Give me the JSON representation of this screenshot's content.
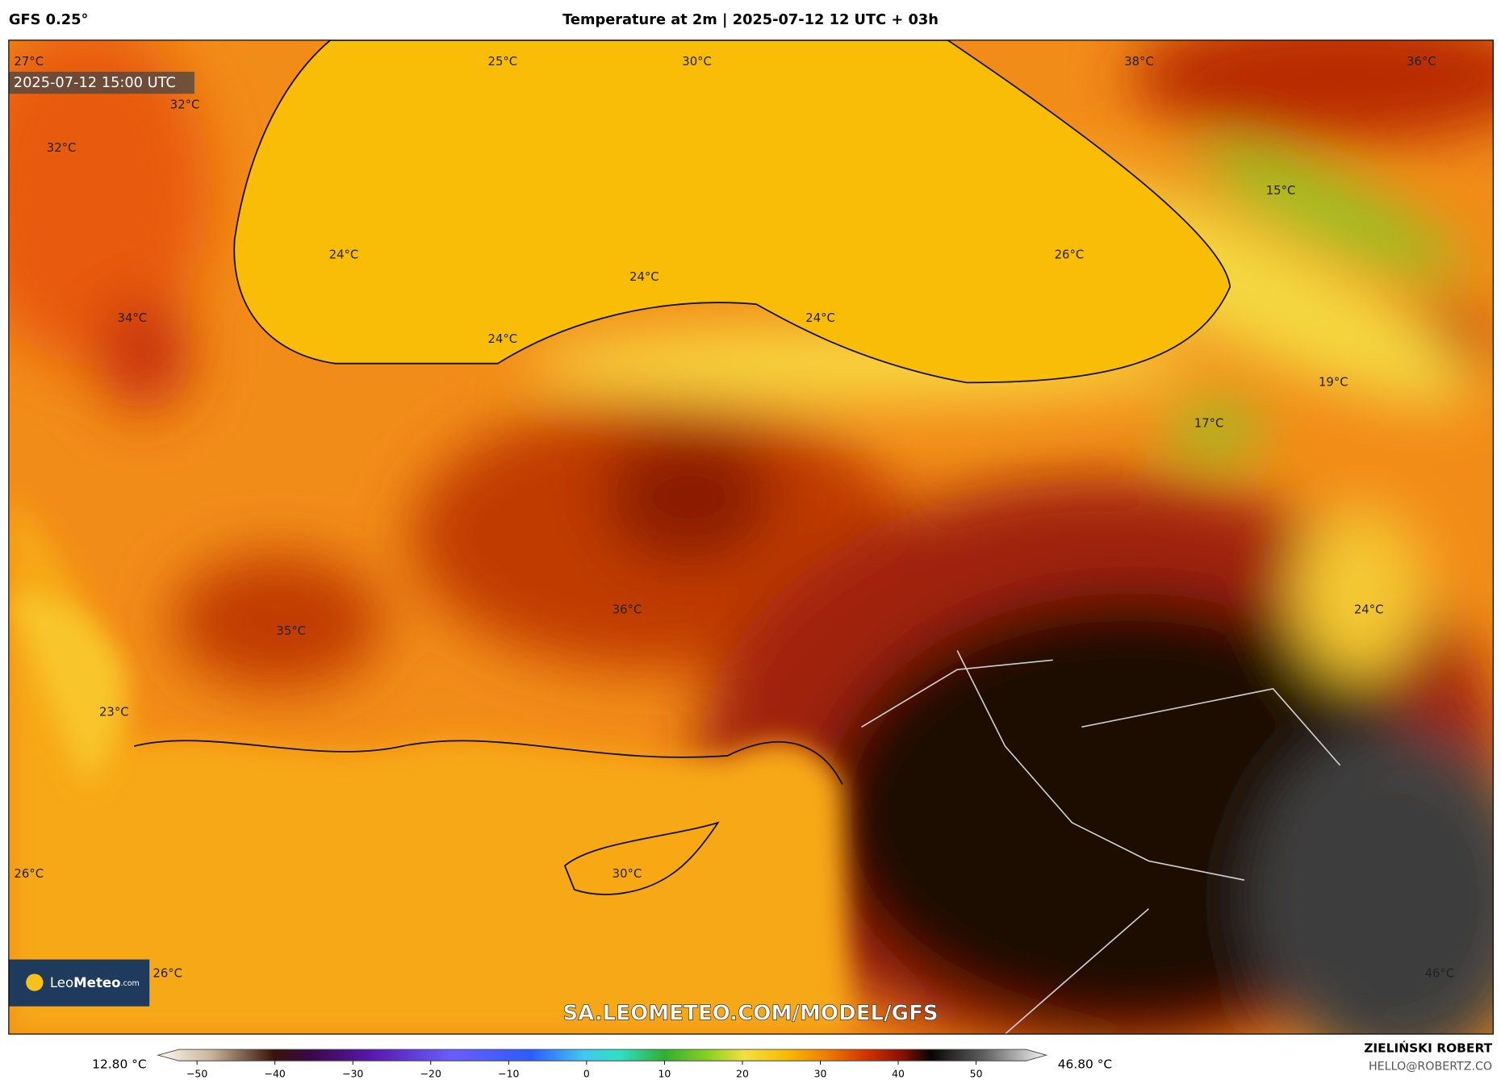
{
  "header": {
    "model": "GFS 0.25°",
    "title": "Temperature at 2m | 2025-07-12 12 UTC + 03h"
  },
  "map": {
    "valid_time": "2025-07-12 15:00 UTC",
    "labels": [
      "27°C",
      "25°C",
      "30°C",
      "38°C",
      "36°C",
      "32°C",
      "32°C",
      "15°C",
      "24°C",
      "26°C",
      "24°C",
      "34°C",
      "24°C",
      "24°C",
      "19°C",
      "17°C",
      "24°C",
      "36°C",
      "35°C",
      "23°C",
      "26°C",
      "30°C",
      "26°C",
      "46°C"
    ],
    "watermark": "SA.LEOMETEO.COM/MODEL/GFS",
    "logo": {
      "name": "Leo",
      "name_bold": "Meteo",
      "suffix": ".com"
    }
  },
  "colorbar": {
    "min_label": "12.80 °C",
    "max_label": "46.80 °C",
    "xlim": [
      -55,
      59
    ],
    "ticks": [
      {
        "value": -50,
        "label": "−50"
      },
      {
        "value": -40,
        "label": "−40"
      },
      {
        "value": -30,
        "label": "−30"
      },
      {
        "value": -20,
        "label": "−20"
      },
      {
        "value": -10,
        "label": "−10"
      },
      0,
      10,
      20,
      30,
      40,
      50
    ]
  },
  "footer": {
    "author": "ZIELIŃSKI ROBERT",
    "email": "HELLO@ROBERTZ.CO"
  }
}
